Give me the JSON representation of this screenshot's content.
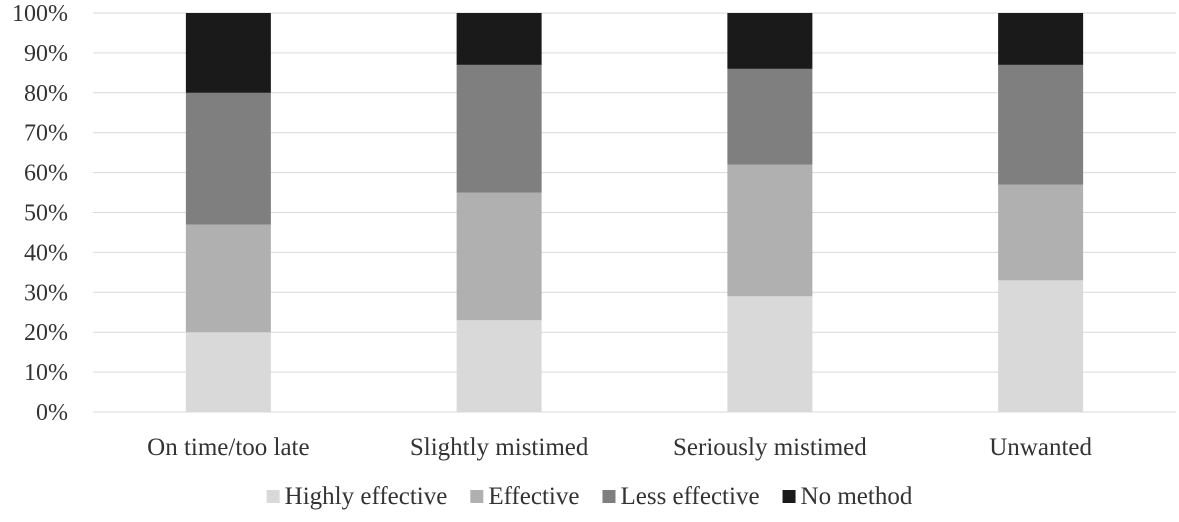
{
  "chart_data": {
    "type": "bar",
    "stacked": true,
    "percent_stacked": true,
    "categories": [
      "On time/too late",
      "Slightly mistimed",
      "Seriously mistimed",
      "Unwanted"
    ],
    "series": [
      {
        "name": "Highly effective",
        "color": "#d9d9d9",
        "values": [
          20,
          23,
          29,
          33
        ]
      },
      {
        "name": "Effective",
        "color": "#b0b0b0",
        "values": [
          27,
          32,
          33,
          24
        ]
      },
      {
        "name": "Less effective",
        "color": "#7f7f7f",
        "values": [
          33,
          32,
          24,
          30
        ]
      },
      {
        "name": "No method",
        "color": "#1a1a1a",
        "values": [
          20,
          13,
          14,
          13
        ]
      }
    ],
    "yticks": [
      "0%",
      "10%",
      "20%",
      "30%",
      "40%",
      "50%",
      "60%",
      "70%",
      "80%",
      "90%",
      "100%"
    ],
    "ylim": [
      0,
      100
    ],
    "title": "",
    "xlabel": "",
    "ylabel": "",
    "grid": true,
    "legend_position": "bottom"
  }
}
